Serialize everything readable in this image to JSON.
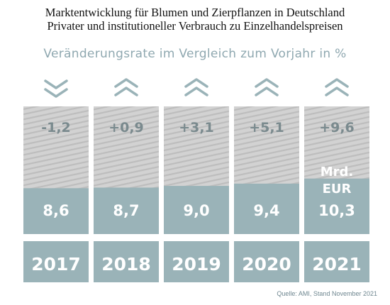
{
  "title_line1": "Marktentwicklung für Blumen und Zierpflanzen in Deutschland",
  "title_line2": "Privater und institutioneller Verbrauch zu Einzelhandelspreisen",
  "subtitle": "Veränderungsrate im Vergleich zum Vorjahr in %",
  "source": "Quelle: AMI, Stand November 2021",
  "colors": {
    "bar": "#9ab3b8",
    "hatch_bg": "#d2d2d2",
    "hatch_line": "#bdbdbd",
    "text_light": "#ffffff",
    "text_dark": "#7a8a8e",
    "arrow": "#9ab3b8"
  },
  "chart_data": {
    "type": "bar",
    "categories": [
      "2017",
      "2018",
      "2019",
      "2020",
      "2021"
    ],
    "values": [
      8.6,
      8.7,
      9.0,
      9.4,
      10.3
    ],
    "value_labels": [
      "8,6",
      "8,7",
      "9,0",
      "9,4",
      "10,3"
    ],
    "change_labels": [
      "-1,2",
      "+0,9",
      "+3,1",
      "+5,1",
      "+9,6"
    ],
    "change_direction": [
      "down",
      "up",
      "up",
      "up",
      "up"
    ],
    "unit_label": [
      "Mrd.",
      "EUR"
    ],
    "ylim": [
      0,
      12
    ]
  }
}
